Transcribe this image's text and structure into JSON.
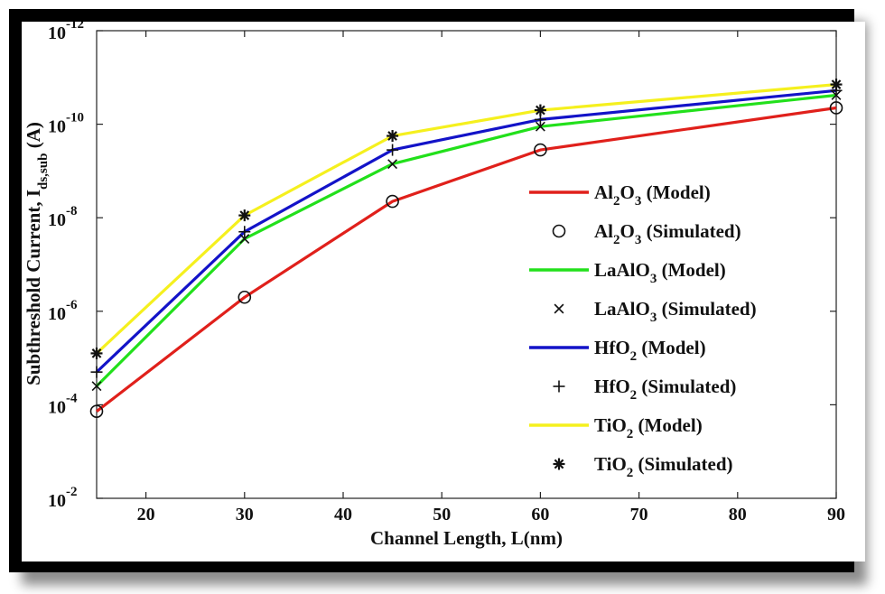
{
  "chart_data": {
    "type": "line",
    "title": "",
    "xlabel": "Channel Length, L(nm)",
    "ylabel": {
      "main": "Subthreshold Current, I",
      "sub": "ds,sub",
      "unit": "(A)"
    },
    "xlim": [
      15,
      90
    ],
    "ylim_exp": [
      -2,
      -12
    ],
    "x_ticks": [
      "20",
      "30",
      "40",
      "50",
      "60",
      "70",
      "80",
      "90"
    ],
    "y_ticks": [
      {
        "base": "10",
        "exp": "-2"
      },
      {
        "base": "10",
        "exp": "-4"
      },
      {
        "base": "10",
        "exp": "-6"
      },
      {
        "base": "10",
        "exp": "-8"
      },
      {
        "base": "10",
        "exp": "-10"
      },
      {
        "base": "10",
        "exp": "-12"
      }
    ],
    "x": [
      15,
      30,
      45,
      60,
      90
    ],
    "series": [
      {
        "name": "Al2O3 (Model)",
        "kind": "line",
        "color": "#e0201b",
        "log10_values": [
          -3.86,
          -6.3,
          -8.35,
          -9.45,
          -10.35
        ]
      },
      {
        "name": "Al2O3 (Simulated)",
        "kind": "marker",
        "marker": "circle",
        "color": "#111111",
        "log10_values": [
          -3.86,
          -6.3,
          -8.35,
          -9.45,
          -10.35
        ]
      },
      {
        "name": "LaAlO3 (Model)",
        "kind": "line",
        "color": "#22e01b",
        "log10_values": [
          -4.4,
          -7.55,
          -9.15,
          -9.95,
          -10.62
        ]
      },
      {
        "name": "LaAlO3 (Simulated)",
        "kind": "marker",
        "marker": "x",
        "color": "#111111",
        "log10_values": [
          -4.4,
          -7.55,
          -9.15,
          -9.95,
          -10.62
        ]
      },
      {
        "name": "HfO2 (Model)",
        "kind": "line",
        "color": "#1313c8",
        "log10_values": [
          -4.7,
          -7.7,
          -9.45,
          -10.1,
          -10.72
        ]
      },
      {
        "name": "HfO2 (Simulated)",
        "kind": "marker",
        "marker": "plus",
        "color": "#111111",
        "log10_values": [
          -4.7,
          -7.7,
          -9.45,
          -10.1,
          -10.72
        ]
      },
      {
        "name": "TiO2 (Model)",
        "kind": "line",
        "color": "#f5f01e",
        "log10_values": [
          -5.1,
          -8.05,
          -9.75,
          -10.3,
          -10.85
        ]
      },
      {
        "name": "TiO2 (Simulated)",
        "kind": "marker",
        "marker": "star",
        "color": "#111111",
        "log10_values": [
          -5.1,
          -8.05,
          -9.75,
          -10.3,
          -10.85
        ]
      }
    ],
    "legend": {
      "position": "right",
      "entries": [
        {
          "base": "Al",
          "sub": "2",
          "rest": "O",
          "sub2": "3",
          "suffix": " (Model)"
        },
        {
          "base": "Al",
          "sub": "2",
          "rest": "O",
          "sub2": "3",
          "suffix": " (Simulated)"
        },
        {
          "base": "LaAlO",
          "sub": "3",
          "rest": "",
          "sub2": "",
          "suffix": " (Model)"
        },
        {
          "base": "LaAlO",
          "sub": "3",
          "rest": "",
          "sub2": "",
          "suffix": " (Simulated)"
        },
        {
          "base": "HfO",
          "sub": "2",
          "rest": "",
          "sub2": "",
          "suffix": " (Model)"
        },
        {
          "base": "HfO",
          "sub": "2",
          "rest": "",
          "sub2": "",
          "suffix": " (Simulated)"
        },
        {
          "base": "TiO",
          "sub": "2",
          "rest": "",
          "sub2": "",
          "suffix": " (Model)"
        },
        {
          "base": "TiO",
          "sub": "2",
          "rest": "",
          "sub2": "",
          "suffix": " (Simulated)"
        }
      ]
    },
    "grid": false
  }
}
